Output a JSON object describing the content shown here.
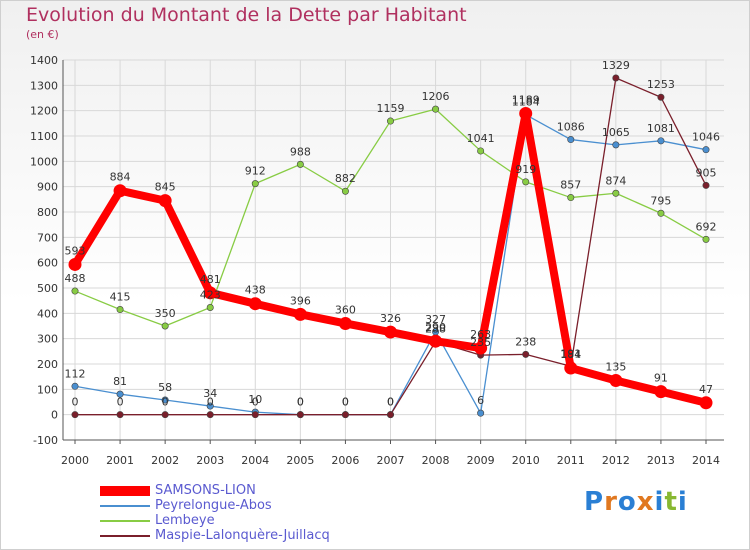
{
  "title": "Evolution du Montant de la Dette par Habitant",
  "subtitle": "(en €)",
  "logo": [
    "P",
    "r",
    "o",
    "x",
    "i",
    "t",
    "i"
  ],
  "logo_colors": [
    "#2a7fd4",
    "#e07820",
    "#2a7fd4",
    "#e07820",
    "#2a7fd4",
    "#88b832",
    "#2a7fd4"
  ],
  "chart_data": {
    "type": "line",
    "title": "Evolution du Montant de la Dette par Habitant",
    "ylabel": "(en €)",
    "xlabel": "",
    "ylim": [
      -100,
      1400
    ],
    "yticks": [
      "-100",
      "0",
      "100",
      "200",
      "300",
      "400",
      "500",
      "600",
      "700",
      "800",
      "900",
      "1000",
      "1100",
      "1200",
      "1300",
      "1400"
    ],
    "x": [
      "2000",
      "2001",
      "2002",
      "2003",
      "2004",
      "2005",
      "2006",
      "2007",
      "2008",
      "2009",
      "2010",
      "2011",
      "2012",
      "2013",
      "2014"
    ],
    "grid": true,
    "series": [
      {
        "name": "SAMSONS-LION",
        "color": "#ff0000",
        "values": [
          593,
          884,
          845,
          481,
          438,
          396,
          360,
          326,
          290,
          263,
          1189,
          184,
          135,
          91,
          47
        ],
        "labels": [
          "593",
          "884",
          "845",
          "481",
          "438",
          "396",
          "360",
          "326",
          "290",
          "263",
          "1189",
          "184",
          "135",
          "91",
          "47"
        ]
      },
      {
        "name": "Peyrelongue-Abos",
        "color": "#4a8fd0",
        "values": [
          112,
          81,
          58,
          34,
          10,
          0,
          0,
          0,
          327,
          6,
          1184,
          1086,
          1065,
          1081,
          1046
        ],
        "labels": [
          "112",
          "81",
          "58",
          "34",
          "10",
          "0",
          "0",
          "0",
          "327",
          "6",
          "1184",
          "1086",
          "1065",
          "1081",
          "1046"
        ]
      },
      {
        "name": "Lembeye",
        "color": "#88cc44",
        "values": [
          488,
          415,
          350,
          423,
          912,
          988,
          882,
          1159,
          1206,
          1041,
          919,
          857,
          874,
          795,
          692
        ],
        "labels": [
          "488",
          "415",
          "350",
          "423",
          "912",
          "988",
          "882",
          "1159",
          "1206",
          "1041",
          "919",
          "857",
          "874",
          "795",
          "692"
        ]
      },
      {
        "name": "Maspie-Lalonquère-Juillacq",
        "color": "#7a1f2b",
        "values": [
          0,
          0,
          0,
          0,
          0,
          0,
          0,
          0,
          288,
          235,
          238,
          191,
          1329,
          1253,
          905
        ],
        "labels": [
          "0",
          "0",
          "0",
          "0",
          "0",
          "0",
          "0",
          "0",
          "288",
          "235",
          "238",
          "191",
          "1329",
          "1253",
          "905"
        ]
      }
    ]
  }
}
